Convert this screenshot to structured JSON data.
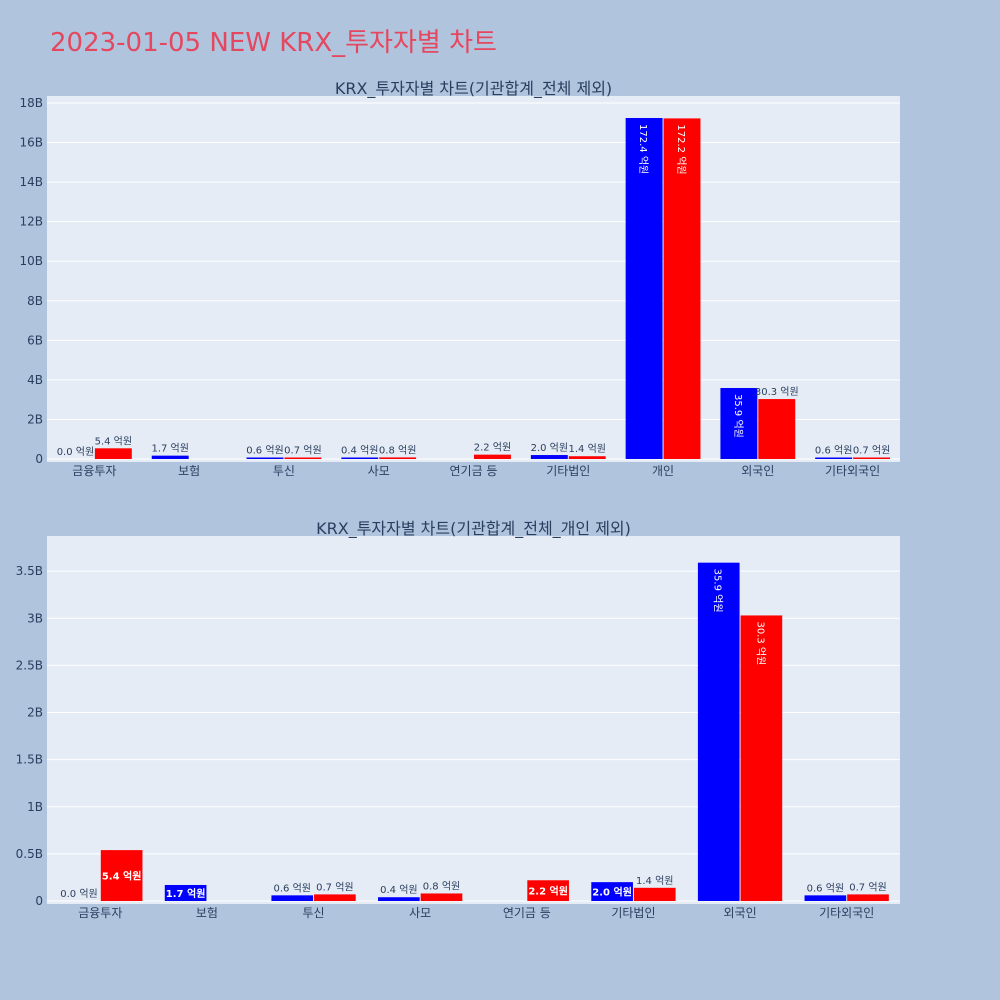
{
  "page_title": "2023-01-05 NEW KRX_투자자별 차트",
  "colors": {
    "buy": "#0000ff",
    "sell": "#ff0000",
    "plot_bg": "#e5ecf6",
    "page_bg": "#b0c4de",
    "title": "#e5475f"
  },
  "chart_data": [
    {
      "type": "bar",
      "title": "KRX_투자자별 차트(기관합계_전체 제외)",
      "categories": [
        "금융투자",
        "보험",
        "투신",
        "사모",
        "연기금 등",
        "기타법인",
        "개인",
        "외국인",
        "기타외국인"
      ],
      "series": [
        {
          "color": "#0000ff",
          "values": [
            0.0,
            0.17,
            0.06,
            0.04,
            0.0,
            0.2,
            17.24,
            3.59,
            0.06
          ],
          "labels": [
            "0.0 억원",
            "1.7 억원",
            "0.6 억원",
            "0.4 억원",
            "",
            "2.0 억원",
            "172.4 억원",
            "35.9 억원",
            "0.6 억원"
          ]
        },
        {
          "color": "#ff0000",
          "values": [
            0.54,
            0.0,
            0.07,
            0.08,
            0.22,
            0.14,
            17.22,
            3.03,
            0.07
          ],
          "labels": [
            "5.4 억원",
            "",
            "0.7 억원",
            "0.8 억원",
            "2.2 억원",
            "1.4 억원",
            "172.2 억원",
            "30.3 억원",
            "0.7 억원"
          ]
        }
      ],
      "yticks": [
        0,
        2,
        4,
        6,
        8,
        10,
        12,
        14,
        16,
        18
      ],
      "ytick_labels": [
        "0",
        "2B",
        "4B",
        "6B",
        "8B",
        "10B",
        "12B",
        "14B",
        "16B",
        "18B"
      ],
      "ylim": [
        0,
        18.1
      ],
      "grid": true
    },
    {
      "type": "bar",
      "title": "KRX_투자자별 차트(기관합계_전체_개인 제외)",
      "categories": [
        "금융투자",
        "보험",
        "투신",
        "사모",
        "연기금 등",
        "기타법인",
        "외국인",
        "기타외국인"
      ],
      "series": [
        {
          "color": "#0000ff",
          "values": [
            0.0,
            0.17,
            0.06,
            0.04,
            0.0,
            0.2,
            3.59,
            0.06
          ],
          "labels": [
            "0.0 억원",
            "1.7 억원",
            "0.6 억원",
            "0.4 억원",
            "",
            "2.0 억원",
            "35.9 억원",
            "0.6 억원"
          ]
        },
        {
          "color": "#ff0000",
          "values": [
            0.54,
            0.0,
            0.07,
            0.08,
            0.22,
            0.14,
            3.03,
            0.07
          ],
          "labels": [
            "5.4 억원",
            "",
            "0.7 억원",
            "0.8 억원",
            "2.2 억원",
            "1.4 억원",
            "30.3 억원",
            "0.7 억원"
          ]
        }
      ],
      "yticks": [
        0,
        0.5,
        1,
        1.5,
        2,
        2.5,
        3,
        3.5
      ],
      "ytick_labels": [
        "0",
        "0.5B",
        "1B",
        "1.5B",
        "2B",
        "2.5B",
        "3B",
        "3.5B"
      ],
      "ylim": [
        0,
        3.82
      ],
      "grid": true
    }
  ]
}
